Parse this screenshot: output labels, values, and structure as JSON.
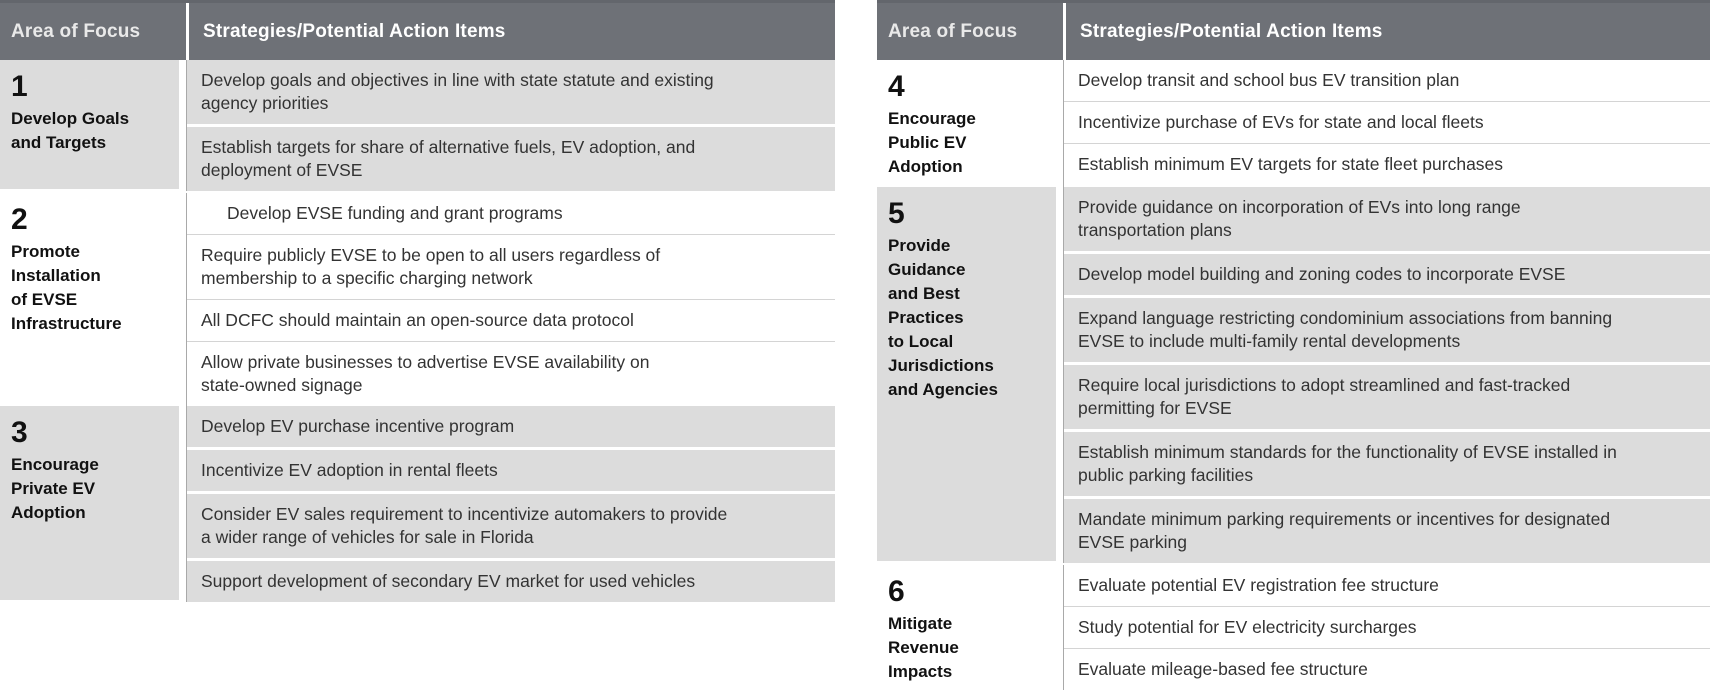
{
  "colors": {
    "header_bg": "#6e7177",
    "header_top_edge": "#63666c",
    "shaded_cell": "#dcdcdc",
    "column_divider": "#a9a9a9",
    "row_rule": "#d4d4d4",
    "body_text": "#333333"
  },
  "tables": [
    {
      "header": {
        "area": "Area of Focus",
        "strategies": "Strategies/Potential Action Items"
      },
      "sections": [
        {
          "number": "1",
          "label": "Develop Goals\nand Targets",
          "shaded": true,
          "items": [
            {
              "text": "Develop goals and objectives in line with state statute and existing\nagency priorities",
              "indent": false
            },
            {
              "text": "Establish targets for share of alternative fuels, EV adoption, and\ndeployment of EVSE",
              "indent": false
            }
          ]
        },
        {
          "number": "2",
          "label": "Promote\nInstallation\nof EVSE\nInfrastructure",
          "shaded": false,
          "items": [
            {
              "text": "Develop EVSE funding and grant programs",
              "indent": true
            },
            {
              "text": "Require publicly EVSE to be open to all users regardless of\nmembership to a specific charging network",
              "indent": false
            },
            {
              "text": "All DCFC should maintain an open-source data protocol",
              "indent": false
            },
            {
              "text": "Allow private businesses to advertise EVSE availability on\nstate-owned signage",
              "indent": false
            }
          ]
        },
        {
          "number": "3",
          "label": "Encourage\nPrivate EV\nAdoption",
          "shaded": true,
          "items": [
            {
              "text": "Develop EV purchase incentive program",
              "indent": false
            },
            {
              "text": "Incentivize EV adoption in rental fleets",
              "indent": false
            },
            {
              "text": "Consider EV sales requirement to incentivize automakers to provide\na wider range of vehicles for sale in Florida",
              "indent": false
            },
            {
              "text": "Support development of secondary EV market for used vehicles",
              "indent": false
            }
          ]
        }
      ]
    },
    {
      "header": {
        "area": "Area of Focus",
        "strategies": "Strategies/Potential Action Items"
      },
      "sections": [
        {
          "number": "4",
          "label": "Encourage\nPublic EV\nAdoption",
          "shaded": false,
          "items": [
            {
              "text": "Develop transit and school bus EV transition plan",
              "indent": false
            },
            {
              "text": "Incentivize purchase of EVs for state and local fleets",
              "indent": false
            },
            {
              "text": "Establish minimum EV targets for state fleet purchases",
              "indent": false
            }
          ]
        },
        {
          "number": "5",
          "label": "Provide\nGuidance\nand Best\nPractices\nto Local\nJurisdictions\nand Agencies",
          "shaded": true,
          "items": [
            {
              "text": "Provide guidance on incorporation of EVs into long range\ntransportation plans",
              "indent": false
            },
            {
              "text": "Develop model building and zoning codes to incorporate EVSE",
              "indent": false
            },
            {
              "text": "Expand language restricting condominium associations from banning\nEVSE to include multi-family rental developments",
              "indent": false
            },
            {
              "text": "Require local jurisdictions to adopt streamlined and fast-tracked\npermitting for EVSE",
              "indent": false
            },
            {
              "text": "Establish minimum standards for the functionality of EVSE installed in\npublic parking facilities",
              "indent": false
            },
            {
              "text": "Mandate minimum parking requirements or incentives for designated\nEVSE parking",
              "indent": false
            }
          ]
        },
        {
          "number": "6",
          "label": "Mitigate\nRevenue\nImpacts",
          "shaded": false,
          "items": [
            {
              "text": "Evaluate potential EV registration fee structure",
              "indent": false
            },
            {
              "text": "Study potential for EV electricity surcharges",
              "indent": false
            },
            {
              "text": "Evaluate mileage-based fee structure",
              "indent": false
            }
          ]
        }
      ]
    }
  ]
}
